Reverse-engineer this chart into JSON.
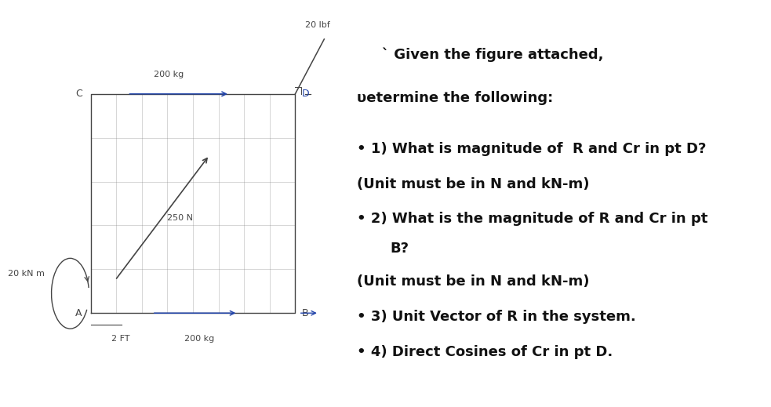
{
  "bg_color": "#ffffff",
  "grid_color": "#888888",
  "line_color": "#444444",
  "arrow_color": "#2244aa",
  "label_200kg_top": "200 kg",
  "label_200kg_bot": "200 kg",
  "label_20lbf": "20 lbf",
  "label_20kNm": "20 kN m",
  "label_2ft": "2 FT",
  "label_250N": "250 N",
  "label_A": "A",
  "label_B": "B",
  "label_C": "C",
  "label_D": "D",
  "grid_nx": 8,
  "grid_ny": 5,
  "text_line1": "` Given the figure attached,",
  "text_line2": "υetermine the following:",
  "bullet1": "• 1) What is magnitude of  R and Cr in pt D?",
  "note1": "(Unit must be in N and kN-m)",
  "bullet2": "• 2) What is the magnitude of R and Cr in pt",
  "bullet2b": "    B?",
  "note2": "(Unit must be in N and kN-m)",
  "bullet3": "• 3) Unit Vector of R in the system.",
  "bullet4": "• 4) Direct Cosines of Cr in pt D.",
  "fontsize_labels": 8,
  "fontsize_text": 13
}
